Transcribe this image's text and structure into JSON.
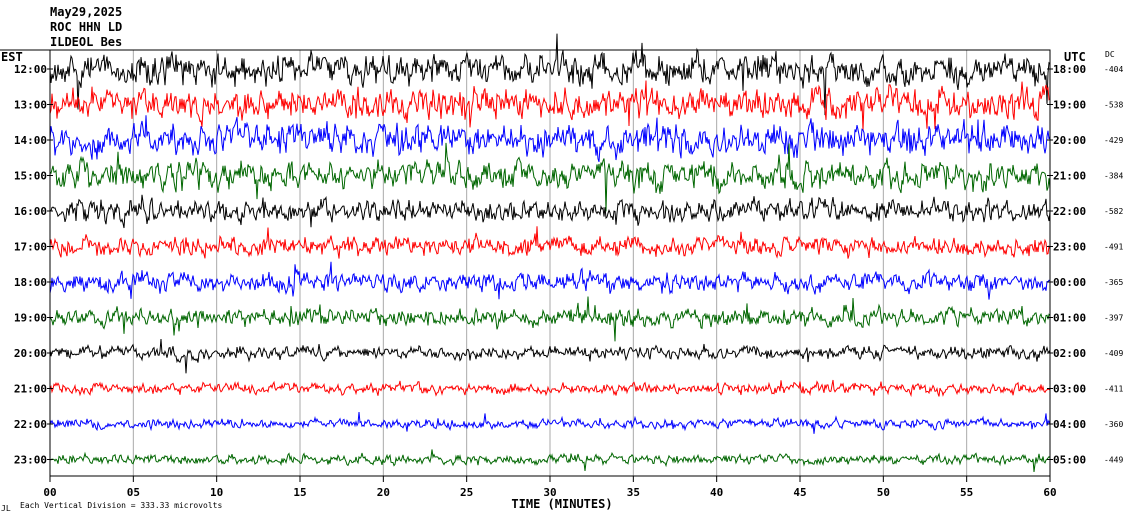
{
  "header": {
    "date": "May29,2025",
    "station": "ROC HHN LD",
    "third_line": "ILDEOL Bes"
  },
  "labels": {
    "left_zone": "EST",
    "right_zone": "UTC",
    "dc_header": "DC",
    "xlabel": "TIME (MINUTES)",
    "footnote": "Each Vertical Division =  333.33 microvolts",
    "corner_mark": "JL"
  },
  "chart_data": {
    "type": "line",
    "title": "",
    "xlabel": "TIME (MINUTES)",
    "ylabel": "",
    "xlim": [
      0,
      60
    ],
    "x_ticks": [
      "00",
      "05",
      "10",
      "15",
      "20",
      "25",
      "30",
      "35",
      "40",
      "45",
      "50",
      "55",
      "60"
    ],
    "trace_colors": [
      "#000000",
      "#ff0000",
      "#0000ff",
      "#006600"
    ],
    "grid": "vertical",
    "rows": [
      {
        "est": "12:00",
        "utc": "18:00",
        "dc": "-404",
        "color": "#000000",
        "amplitude": 1.0
      },
      {
        "est": "13:00",
        "utc": "19:00",
        "dc": "-538",
        "color": "#ff0000",
        "amplitude": 1.0
      },
      {
        "est": "14:00",
        "utc": "20:00",
        "dc": "-429",
        "color": "#0000ff",
        "amplitude": 1.0
      },
      {
        "est": "15:00",
        "utc": "21:00",
        "dc": "-384",
        "color": "#006600",
        "amplitude": 0.9
      },
      {
        "est": "16:00",
        "utc": "22:00",
        "dc": "-582",
        "color": "#000000",
        "amplitude": 0.7
      },
      {
        "est": "17:00",
        "utc": "23:00",
        "dc": "-491",
        "color": "#ff0000",
        "amplitude": 0.6
      },
      {
        "est": "18:00",
        "utc": "00:00",
        "dc": "-365",
        "color": "#0000ff",
        "amplitude": 0.6
      },
      {
        "est": "19:00",
        "utc": "01:00",
        "dc": "-397",
        "color": "#006600",
        "amplitude": 0.55
      },
      {
        "est": "20:00",
        "utc": "02:00",
        "dc": "-409",
        "color": "#000000",
        "amplitude": 0.4
      },
      {
        "est": "21:00",
        "utc": "03:00",
        "dc": "-411",
        "color": "#ff0000",
        "amplitude": 0.35
      },
      {
        "est": "22:00",
        "utc": "04:00",
        "dc": "-360",
        "color": "#0000ff",
        "amplitude": 0.3
      },
      {
        "est": "23:00",
        "utc": "05:00",
        "dc": "-449",
        "color": "#006600",
        "amplitude": 0.3
      }
    ]
  }
}
